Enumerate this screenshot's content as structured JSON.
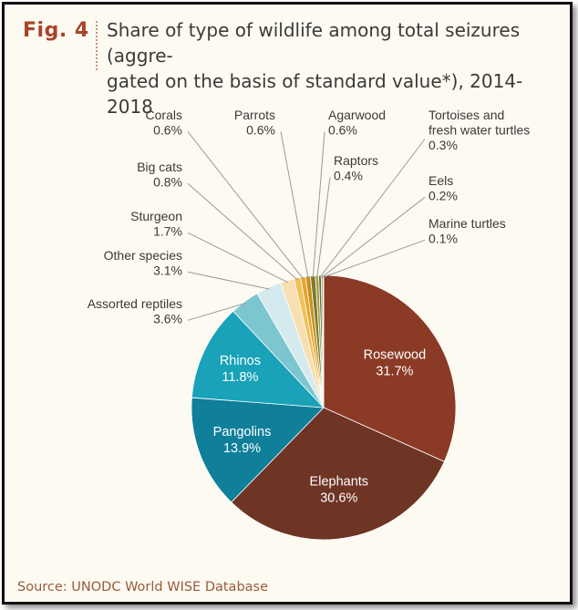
{
  "figure": {
    "label": "Fig. 4",
    "title": "Share of type of wildlife among total seizures (aggre-\ngated on the basis of standard value*), 2014-2018",
    "source": "Source: UNODC World WISE Database"
  },
  "chart_data": {
    "type": "pie",
    "unit": "%",
    "slices": [
      {
        "name": "Rosewood",
        "value": 31.7,
        "value_label": "31.7%",
        "color": "#8b3a26"
      },
      {
        "name": "Elephants",
        "value": 30.6,
        "value_label": "30.6%",
        "color": "#6e3424"
      },
      {
        "name": "Pangolins",
        "value": 13.9,
        "value_label": "13.9%",
        "color": "#0f7f9a"
      },
      {
        "name": "Rhinos",
        "value": 11.8,
        "value_label": "11.8%",
        "color": "#19a2b8"
      },
      {
        "name": "Assorted reptiles",
        "value": 3.6,
        "value_label": "3.6%",
        "color": "#7cc6d0"
      },
      {
        "name": "Other species",
        "value": 3.1,
        "value_label": "3.1%",
        "color": "#d4eaee"
      },
      {
        "name": "Sturgeon",
        "value": 1.7,
        "value_label": "1.7%",
        "color": "#f6dfb0"
      },
      {
        "name": "Big cats",
        "value": 0.8,
        "value_label": "0.8%",
        "color": "#f1c15a"
      },
      {
        "name": "Corals",
        "value": 0.6,
        "value_label": "0.6%",
        "color": "#e6a52c"
      },
      {
        "name": "Parrots",
        "value": 0.6,
        "value_label": "0.6%",
        "color": "#c8901e"
      },
      {
        "name": "Agarwood",
        "value": 0.6,
        "value_label": "0.6%",
        "color": "#7a7a2e"
      },
      {
        "name": "Raptors",
        "value": 0.4,
        "value_label": "0.4%",
        "color": "#a99a3c"
      },
      {
        "name": "Tortoises and\nfresh water turtles",
        "value": 0.3,
        "value_label": "0.3%",
        "color": "#5e6b2a"
      },
      {
        "name": "Eels",
        "value": 0.2,
        "value_label": "0.2%",
        "color": "#8a7d3a"
      },
      {
        "name": "Marine turtles",
        "value": 0.1,
        "value_label": "0.1%",
        "color": "#4f5a24"
      }
    ]
  }
}
